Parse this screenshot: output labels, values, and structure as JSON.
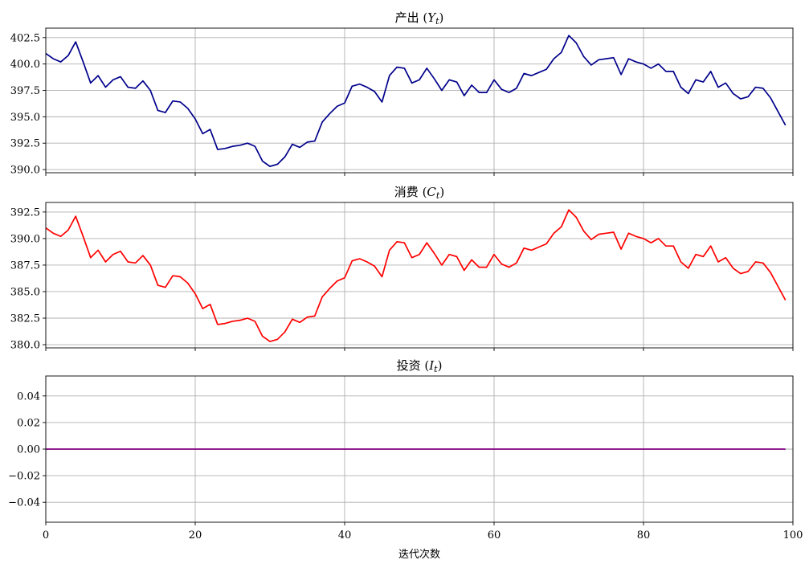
{
  "chart_data": [
    {
      "type": "line",
      "title": "产出 (Y_t)",
      "title_main": "产出",
      "title_sym": "Y",
      "title_sub": "t",
      "color": "#00008b",
      "grid": true,
      "xlim": [
        0,
        100
      ],
      "ylim": [
        389.7,
        403.4
      ],
      "yticks": [
        390.0,
        392.5,
        395.0,
        397.5,
        400.0,
        402.5
      ],
      "ytick_labels": [
        "390.0",
        "392.5",
        "395.0",
        "397.5",
        "400.0",
        "402.5"
      ],
      "x": [
        0,
        1,
        2,
        3,
        4,
        5,
        6,
        7,
        8,
        9,
        10,
        11,
        12,
        13,
        14,
        15,
        16,
        17,
        18,
        19,
        20,
        21,
        22,
        23,
        24,
        25,
        26,
        27,
        28,
        29,
        30,
        31,
        32,
        33,
        34,
        35,
        36,
        37,
        38,
        39,
        40,
        41,
        42,
        43,
        44,
        45,
        46,
        47,
        48,
        49,
        50,
        51,
        52,
        53,
        54,
        55,
        56,
        57,
        58,
        59,
        60,
        61,
        62,
        63,
        64,
        65,
        66,
        67,
        68,
        69,
        70,
        71,
        72,
        73,
        74,
        75,
        76,
        77,
        78,
        79,
        80,
        81,
        82,
        83,
        84,
        85,
        86,
        87,
        88,
        89,
        90,
        91,
        92,
        93,
        94,
        95,
        96,
        97,
        98,
        99
      ],
      "values": [
        401.0,
        400.5,
        400.2,
        400.8,
        402.1,
        400.2,
        398.2,
        398.9,
        397.8,
        398.5,
        398.8,
        397.8,
        397.7,
        398.4,
        397.5,
        395.6,
        395.4,
        396.5,
        396.4,
        395.8,
        394.8,
        393.4,
        393.8,
        391.9,
        392.0,
        392.2,
        392.3,
        392.5,
        392.2,
        390.8,
        390.3,
        390.5,
        391.2,
        392.4,
        392.1,
        392.6,
        392.7,
        394.5,
        395.3,
        396.0,
        396.3,
        397.9,
        398.1,
        397.8,
        397.4,
        396.4,
        398.9,
        399.7,
        399.6,
        398.2,
        398.5,
        399.6,
        398.6,
        397.5,
        398.5,
        398.3,
        397.0,
        398.0,
        397.3,
        397.3,
        398.5,
        397.6,
        397.3,
        397.7,
        399.1,
        398.9,
        399.2,
        399.5,
        400.5,
        401.1,
        402.7,
        402.0,
        400.7,
        399.9,
        400.4,
        400.5,
        400.6,
        399.0,
        400.5,
        400.2,
        400.0,
        399.6,
        400.0,
        399.3,
        399.3,
        397.8,
        397.2,
        398.5,
        398.3,
        399.3,
        397.8,
        398.2,
        397.2,
        396.7,
        396.9,
        397.8,
        397.7,
        396.8,
        395.5,
        394.2
      ]
    },
    {
      "type": "line",
      "title": "消费 (C_t)",
      "title_main": "消费",
      "title_sym": "C",
      "title_sub": "t",
      "color": "#ff0000",
      "grid": true,
      "xlim": [
        0,
        100
      ],
      "ylim": [
        379.7,
        393.4
      ],
      "yticks": [
        380.0,
        382.5,
        385.0,
        387.5,
        390.0,
        392.5
      ],
      "ytick_labels": [
        "380.0",
        "382.5",
        "385.0",
        "387.5",
        "390.0",
        "392.5"
      ],
      "x": [
        0,
        1,
        2,
        3,
        4,
        5,
        6,
        7,
        8,
        9,
        10,
        11,
        12,
        13,
        14,
        15,
        16,
        17,
        18,
        19,
        20,
        21,
        22,
        23,
        24,
        25,
        26,
        27,
        28,
        29,
        30,
        31,
        32,
        33,
        34,
        35,
        36,
        37,
        38,
        39,
        40,
        41,
        42,
        43,
        44,
        45,
        46,
        47,
        48,
        49,
        50,
        51,
        52,
        53,
        54,
        55,
        56,
        57,
        58,
        59,
        60,
        61,
        62,
        63,
        64,
        65,
        66,
        67,
        68,
        69,
        70,
        71,
        72,
        73,
        74,
        75,
        76,
        77,
        78,
        79,
        80,
        81,
        82,
        83,
        84,
        85,
        86,
        87,
        88,
        89,
        90,
        91,
        92,
        93,
        94,
        95,
        96,
        97,
        98,
        99
      ],
      "values": [
        391.0,
        390.5,
        390.2,
        390.8,
        392.1,
        390.2,
        388.2,
        388.9,
        387.8,
        388.5,
        388.8,
        387.8,
        387.7,
        388.4,
        387.5,
        385.6,
        385.4,
        386.5,
        386.4,
        385.8,
        384.8,
        383.4,
        383.8,
        381.9,
        382.0,
        382.2,
        382.3,
        382.5,
        382.2,
        380.8,
        380.3,
        380.5,
        381.2,
        382.4,
        382.1,
        382.6,
        382.7,
        384.5,
        385.3,
        386.0,
        386.3,
        387.9,
        388.1,
        387.8,
        387.4,
        386.4,
        388.9,
        389.7,
        389.6,
        388.2,
        388.5,
        389.6,
        388.6,
        387.5,
        388.5,
        388.3,
        387.0,
        388.0,
        387.3,
        387.3,
        388.5,
        387.6,
        387.3,
        387.7,
        389.1,
        388.9,
        389.2,
        389.5,
        390.5,
        391.1,
        392.7,
        392.0,
        390.7,
        389.9,
        390.4,
        390.5,
        390.6,
        389.0,
        390.5,
        390.2,
        390.0,
        389.6,
        390.0,
        389.3,
        389.3,
        387.8,
        387.2,
        388.5,
        388.3,
        389.3,
        387.8,
        388.2,
        387.2,
        386.7,
        386.9,
        387.8,
        387.7,
        386.8,
        385.5,
        384.2
      ]
    },
    {
      "type": "line",
      "title": "投资 (I_t)",
      "title_main": "投资",
      "title_sym": "I",
      "title_sub": "t",
      "color": "#800080",
      "grid": true,
      "xlim": [
        0,
        100
      ],
      "ylim": [
        -0.055,
        0.055
      ],
      "yticks": [
        -0.04,
        -0.02,
        0.0,
        0.02,
        0.04
      ],
      "ytick_labels": [
        "−0.04",
        "−0.02",
        "0.00",
        "0.02",
        "0.04"
      ],
      "x": [
        0,
        99
      ],
      "values": [
        0.0,
        0.0
      ],
      "xticks": [
        0,
        20,
        40,
        60,
        80,
        100
      ],
      "xtick_labels": [
        "0",
        "20",
        "40",
        "60",
        "80",
        "100"
      ],
      "xlabel": "迭代次数"
    }
  ]
}
